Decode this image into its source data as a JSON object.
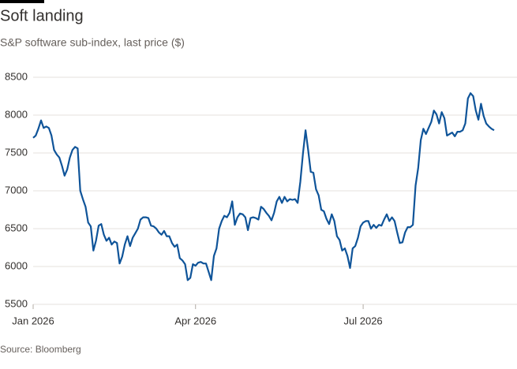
{
  "chart_data": {
    "type": "line",
    "title": "Soft landing",
    "subtitle": "S&P software sub-index, last price ($)",
    "source": "Source: Bloomberg",
    "color": "#0f5499",
    "grid": true,
    "values": [
      7700,
      7730,
      7820,
      7930,
      7830,
      7850,
      7830,
      7730,
      7540,
      7480,
      7440,
      7330,
      7200,
      7280,
      7440,
      7540,
      7580,
      7560,
      7000,
      6890,
      6790,
      6580,
      6530,
      6210,
      6340,
      6540,
      6560,
      6420,
      6340,
      6380,
      6290,
      6330,
      6310,
      6040,
      6130,
      6290,
      6400,
      6270,
      6380,
      6440,
      6500,
      6620,
      6650,
      6650,
      6640,
      6540,
      6530,
      6500,
      6450,
      6420,
      6470,
      6400,
      6400,
      6310,
      6260,
      6290,
      6110,
      6080,
      6030,
      5820,
      5850,
      6030,
      6010,
      6050,
      6060,
      6040,
      6040,
      5930,
      5820,
      6140,
      6240,
      6500,
      6600,
      6670,
      6650,
      6710,
      6860,
      6550,
      6650,
      6700,
      6690,
      6650,
      6480,
      6640,
      6650,
      6640,
      6620,
      6790,
      6760,
      6710,
      6670,
      6610,
      6710,
      6860,
      6920,
      6840,
      6920,
      6860,
      6890,
      6880,
      6890,
      6840,
      7120,
      7490,
      7800,
      7540,
      7250,
      7240,
      7020,
      6940,
      6750,
      6730,
      6630,
      6560,
      6690,
      6600,
      6400,
      6350,
      6210,
      6240,
      6140,
      5980,
      6240,
      6270,
      6380,
      6530,
      6580,
      6600,
      6600,
      6500,
      6550,
      6510,
      6550,
      6540,
      6620,
      6690,
      6600,
      6650,
      6600,
      6450,
      6310,
      6320,
      6450,
      6520,
      6520,
      6550,
      7070,
      7300,
      7670,
      7820,
      7750,
      7830,
      7910,
      8060,
      8010,
      7890,
      8040,
      7960,
      7730,
      7750,
      7770,
      7720,
      7780,
      7780,
      7800,
      7890,
      8220,
      8290,
      8250,
      8060,
      7940,
      8150,
      7990,
      7890,
      7850,
      7820,
      7800
    ],
    "xlim": [
      0,
      176
    ],
    "xticks": [
      {
        "value": 0,
        "label": "Jan 2026"
      },
      {
        "value": 62,
        "label": "Apr 2026"
      },
      {
        "value": 126,
        "label": "Jul 2026"
      }
    ],
    "ylim": [
      5500,
      8500
    ],
    "yticks": [
      5500,
      6000,
      6500,
      7000,
      7500,
      8000,
      8500
    ]
  }
}
